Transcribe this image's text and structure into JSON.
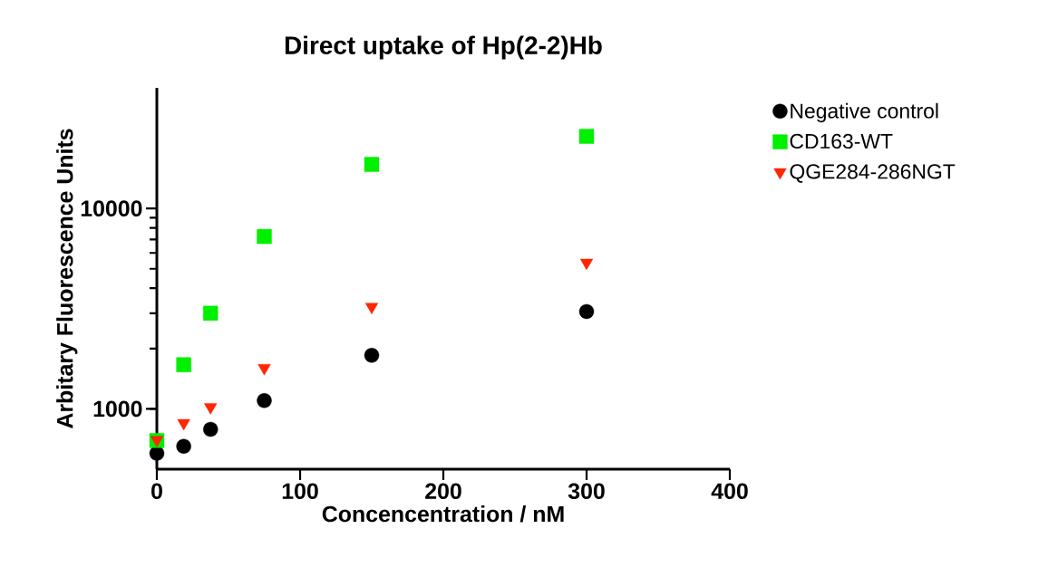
{
  "chart_data": {
    "type": "scatter",
    "title": "Direct uptake of Hp(2-2)Hb",
    "xlabel": "Concencentration / nM",
    "ylabel": "Arbitary Fluorescence Units",
    "x": [
      0,
      18.75,
      37.5,
      75,
      150,
      300
    ],
    "series": [
      {
        "name": "Negative control",
        "color": "#000000",
        "marker": "circle",
        "values": [
          600,
          650,
          790,
          1100,
          1850,
          3060
        ]
      },
      {
        "name": "CD163-WT",
        "color": "#00f000",
        "marker": "square",
        "values": [
          695,
          1660,
          3000,
          7250,
          16600,
          22900
        ]
      },
      {
        "name": "QGE284-286NGT",
        "color": "#ff2600",
        "marker": "triangle",
        "values": [
          700,
          850,
          1020,
          1600,
          3230,
          5370
        ]
      }
    ],
    "xlim": [
      0,
      400
    ],
    "ylim": [
      500,
      40000
    ],
    "xticks": [
      0,
      100,
      200,
      300,
      400
    ],
    "yticks": [
      1000,
      10000
    ],
    "log": "y",
    "grid": false,
    "legend": "top right"
  }
}
